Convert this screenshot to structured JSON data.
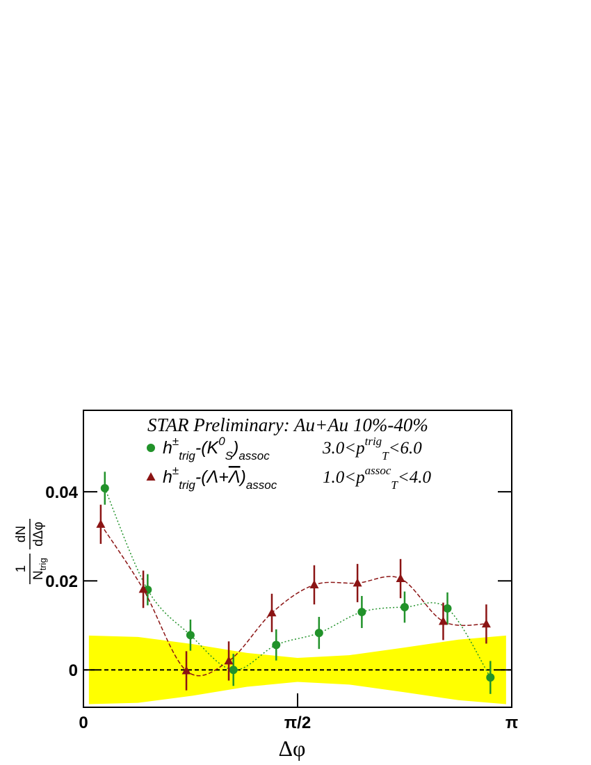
{
  "chart_data": {
    "type": "errorbar",
    "annotation": "STAR Preliminary: Au+Au 10%-40%",
    "xlabel": "Δφ",
    "ylabel": {
      "num1": "1",
      "den1": "N",
      "den1_sub": "trig",
      "num2": "dN",
      "den2": "dΔφ"
    },
    "xlim": [
      0,
      3.1416
    ],
    "ylim": [
      -0.0084,
      0.0583
    ],
    "xticks": [
      {
        "value": 0,
        "label": "0"
      },
      {
        "value": 1.5708,
        "label": "π/2"
      },
      {
        "value": 3.1416,
        "label": "π"
      }
    ],
    "yticks": [
      0,
      0.02,
      0.04
    ],
    "band": {
      "color": "#ffff00",
      "x": [
        0.04,
        0.4,
        0.8,
        1.2,
        1.57,
        1.95,
        2.35,
        2.75,
        3.1
      ],
      "upper": [
        0.0077,
        0.0074,
        0.0058,
        0.0038,
        0.0027,
        0.0033,
        0.005,
        0.0068,
        0.0077
      ],
      "lower": [
        -0.0077,
        -0.0074,
        -0.0058,
        -0.0038,
        -0.0027,
        -0.0033,
        -0.005,
        -0.0068,
        -0.0077
      ]
    },
    "series": [
      {
        "marker": "circle",
        "color": "#21922a",
        "line": "dotted",
        "label_parts": [
          {
            "text": "h"
          },
          {
            "text": "±",
            "script": "sup"
          },
          {
            "text": "trig",
            "script": "sub"
          },
          {
            "text": "-(K"
          },
          {
            "text": "0",
            "script": "sup"
          },
          {
            "text": "S",
            "script": "sub"
          },
          {
            "text": ")"
          },
          {
            "text": "assoc",
            "script": "sub"
          }
        ],
        "cut_parts": [
          {
            "text": "3.0<p"
          },
          {
            "text": "trig",
            "script": "sup"
          },
          {
            "text": "T",
            "script": "sub"
          },
          {
            "text": "<6.0"
          }
        ],
        "x": [
          0.157,
          0.471,
          0.785,
          1.1,
          1.414,
          1.728,
          2.042,
          2.356,
          2.67,
          2.985
        ],
        "values": [
          0.0408,
          0.018,
          0.0078,
          0.0,
          0.0056,
          0.0083,
          0.013,
          0.0141,
          0.0138,
          -0.0017
        ],
        "errors": [
          0.0037,
          0.0035,
          0.0035,
          0.0036,
          0.0035,
          0.0036,
          0.0036,
          0.0035,
          0.0036,
          0.0037
        ]
      },
      {
        "marker": "triangle",
        "color": "#8b1414",
        "line": "dashed",
        "label_parts": [
          {
            "text": "h"
          },
          {
            "text": "±",
            "script": "sup"
          },
          {
            "text": "trig",
            "script": "sub"
          },
          {
            "text": "-(Λ+"
          },
          {
            "text": "Λ",
            "overline": true
          },
          {
            "text": ")"
          },
          {
            "text": "assoc",
            "script": "sub"
          }
        ],
        "cut_parts": [
          {
            "text": "1.0<p"
          },
          {
            "text": "assoc",
            "script": "sup"
          },
          {
            "text": "T",
            "script": "sub"
          },
          {
            "text": "<4.0"
          }
        ],
        "x": [
          0.127,
          0.439,
          0.755,
          1.066,
          1.382,
          1.693,
          2.01,
          2.326,
          2.639,
          2.955
        ],
        "values": [
          0.0327,
          0.0181,
          -0.0002,
          0.002,
          0.0128,
          0.0191,
          0.0195,
          0.0205,
          0.0109,
          0.0103
        ],
        "errors": [
          0.0044,
          0.0042,
          0.0044,
          0.0044,
          0.0043,
          0.0044,
          0.0043,
          0.0044,
          0.0042,
          0.0044
        ]
      }
    ]
  }
}
